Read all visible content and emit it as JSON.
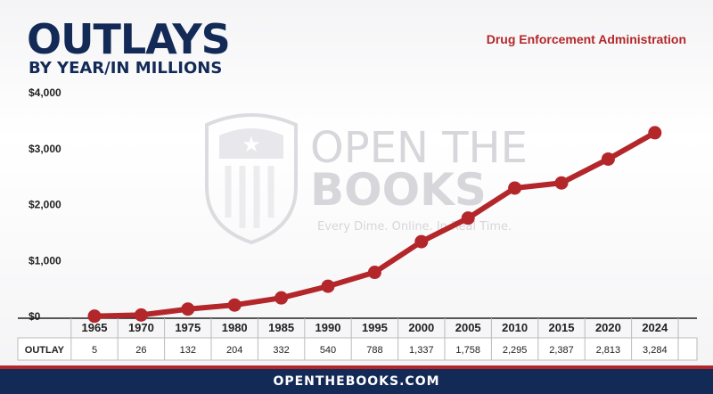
{
  "header": {
    "title": "OUTLAYS",
    "subtitle": "BY YEAR/IN MILLIONS",
    "agency": "Drug Enforcement Administration"
  },
  "watermark": {
    "line1": "OPEN THE",
    "line2": "BOOKS",
    "tagline": "Every Dime. Online. In Real Time."
  },
  "table": {
    "row_label": "OUTLAY",
    "values": [
      "5",
      "26",
      "132",
      "204",
      "332",
      "540",
      "788",
      "1,337",
      "1,758",
      "2,295",
      "2,387",
      "2,813",
      "3,284"
    ]
  },
  "footer": {
    "text": "OPENTHEBOOKS.COM"
  },
  "colors": {
    "line": "#b3262a",
    "navy": "#132a57",
    "accent_red": "#b3262a"
  },
  "chart_data": {
    "type": "line",
    "title": "OUTLAYS",
    "subtitle": "BY YEAR/IN MILLIONS",
    "categories": [
      "1965",
      "1970",
      "1975",
      "1980",
      "1985",
      "1990",
      "1995",
      "2000",
      "2005",
      "2010",
      "2015",
      "2020",
      "2024"
    ],
    "series": [
      {
        "values": [
          5,
          26,
          132,
          204,
          332,
          540,
          788,
          1337,
          1758,
          2295,
          2387,
          2813,
          3284
        ]
      }
    ],
    "ylim": [
      0,
      4000
    ],
    "yticks": [
      0,
      1000,
      2000,
      3000,
      4000
    ],
    "ytick_labels": [
      "$0",
      "$1,000",
      "$2,000",
      "$3,000",
      "$4,000"
    ],
    "grid": false,
    "legend": "none"
  }
}
